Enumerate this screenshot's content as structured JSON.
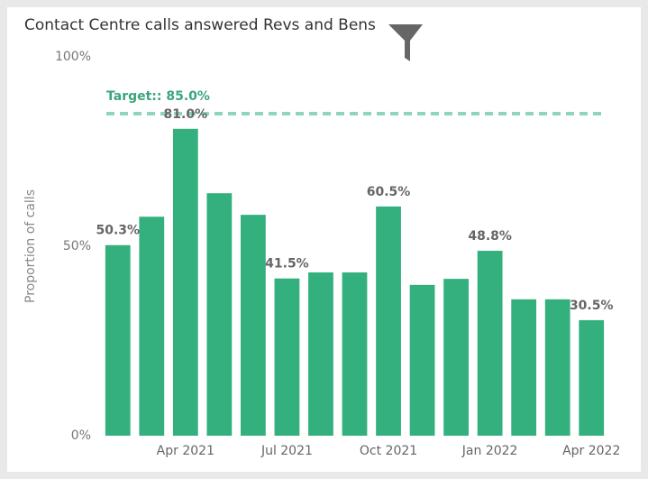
{
  "chart_data": {
    "type": "bar",
    "title": "Contact Centre calls answered Revs and Bens",
    "y_label": "Proportion of calls",
    "categories": [
      null,
      null,
      "Apr 2021",
      null,
      null,
      "Jul 2021",
      null,
      null,
      "Oct 2021",
      null,
      null,
      "Jan 2022",
      null,
      null,
      "Apr 2022"
    ],
    "values": [
      50.3,
      57.8,
      81.0,
      64.0,
      58.3,
      41.5,
      43.1,
      43.1,
      60.5,
      39.8,
      41.4,
      48.8,
      36.0,
      36.0,
      30.5
    ],
    "value_labels": [
      "50.3%",
      null,
      "81.0%",
      null,
      null,
      "41.5%",
      null,
      null,
      "60.5%",
      null,
      null,
      "48.8%",
      null,
      null,
      "30.5%"
    ],
    "color": "#33b07e",
    "target": {
      "value": 85,
      "label": "Target:: 85.0%"
    },
    "target_color": "#8fd6b8",
    "ylim": [
      0,
      100
    ],
    "yticks": [
      {
        "value": 0,
        "label": "0%"
      },
      {
        "value": 50,
        "label": "50%"
      },
      {
        "value": 100,
        "label": "100%"
      }
    ],
    "grid": false
  }
}
